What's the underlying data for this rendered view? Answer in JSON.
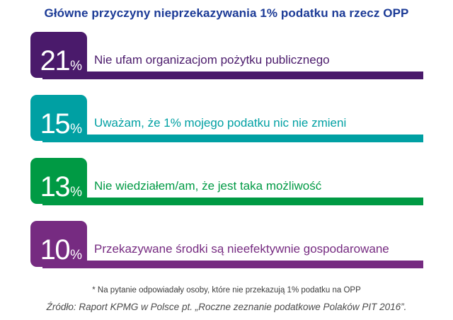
{
  "title": "Główne przyczyny nieprzekazywania 1% podatku na rzecz OPP",
  "footnote": "* Na pytanie odpowiadały osoby, które nie przekazują 1% podatku na OPP",
  "source": "Źródło: Raport KPMG w Polsce pt. „Roczne zeznanie podatkowe Polaków PIT 2016”.",
  "chart_data": {
    "type": "bar",
    "orientation": "horizontal",
    "title": "Główne przyczyny nieprzekazywania 1% podatku na rzecz OPP",
    "categories": [
      "Nie ufam organizacjom pożytku publicznego",
      "Uważam, że 1% mojego podatku nic nie zmieni",
      "Nie wiedziałem/am, że jest taka możliwość",
      "Przekazywane środki są nieefektywnie gospodarowane"
    ],
    "values": [
      21,
      15,
      13,
      10
    ],
    "unit": "%",
    "colors": [
      "#4a1a6b",
      "#00a0a3",
      "#009a44",
      "#762b81"
    ],
    "title_color": "#1b3a96",
    "layout": {
      "bars_equal_length": true,
      "value_badge": "rounded-square-left",
      "legend": "none",
      "grid": "off"
    }
  }
}
